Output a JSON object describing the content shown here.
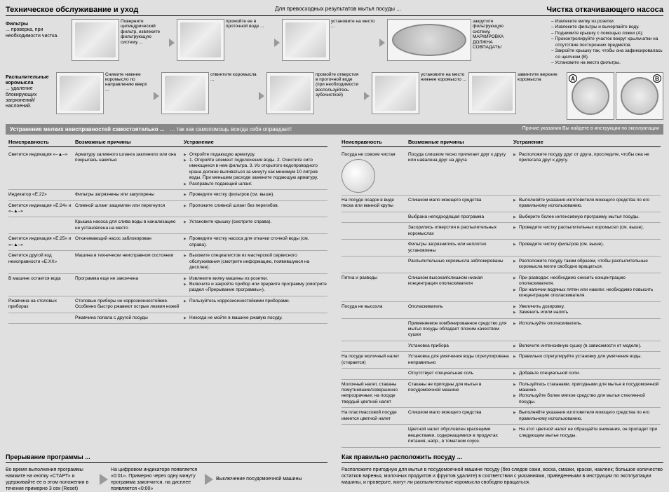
{
  "header": {
    "left": "Техническое обслуживание и уход",
    "mid": "Для превосходных результатов мытья посуды ...",
    "right": "Чистка откачивающего насоса"
  },
  "filters": {
    "label_b": "Фильтры",
    "label_rest": "... проверка, при необходимости чистка.",
    "steps": [
      "Поверните цилиндрический фильтр, извлеките фильтрующую систему ...",
      "промойте ее в проточной воде ...",
      "установите на место ...",
      "закрутите фильтрующую систему. МАРКИРОВКА ДОЛЖНА СОВПАДАТЬ!"
    ]
  },
  "pump_notes": [
    "– Извлеките вилку из розетки.",
    "– Извлеките фильтры и вычерпайте воду.",
    "– Поднимите крышку с помощью ложки (A).",
    "– Проконтролируйте участок вокруг крыльчатки на отсутствие посторонних предметов.",
    "– Закройте крышку так, чтобы она зафиксировалась со щелчком (B).",
    "– Установите на место фильтры."
  ],
  "arms": {
    "label_b": "Распылительные коромысла",
    "label_rest": "... удаление блокирующих загрязнений/ наслоений.",
    "steps": [
      "Снимите нижнее коромысло по направлению вверх ...",
      "отвинтите коромысла ...",
      "промойте отверстия в проточной воде (при необходимости воспользуйтесь зубочисткой)",
      "установите на место нижнее коромысло ...",
      "завинтите верхние коромысла"
    ]
  },
  "darkbar": {
    "l": "Устранение мелких неисправностей самостоятельно ...",
    "m": "... так как самопомощь всегда себя оправдает!",
    "r": "Прочие указания Вы найдете в инструкции по эксплуатации"
  },
  "thead": {
    "c1": "Неисправность",
    "c2": "Возможные причины",
    "c3": "Устранение"
  },
  "left_rows": [
    {
      "c1": "Светится индикация «–▲–»",
      "c2": "Арматуру заливного шланга заклинило или она покрылась накипью",
      "c3": [
        "Откройте подающую арматуру.",
        "1. Откройте элемент подключения воды. 2. Очистите сито имеющееся в нем фильтра. 3. Из открытого водопроводного крана должно выливаться за минуту как минимум 10 литров воды. При меньшем расходе замените подающую арматуру.",
        "Расправьте подающий шланг."
      ]
    },
    {
      "c1": "Индикатор «E:22»",
      "c2": "Фильтры загрязнены или закупорены",
      "c3": [
        "Проведите чистку фильтров (см. выше)."
      ]
    },
    {
      "c1": "Светится индикация «E:24» и «–▲–»",
      "c2": "Сливной шланг защемлен или перегнулся",
      "c3": [
        "Проложите сливной шланг без перегибов."
      ]
    },
    {
      "c1": "",
      "c2": "Крышка насоса для слива воды в канализацию не установлена на место",
      "c3": [
        "Установите крышку (смотрите справа)."
      ]
    },
    {
      "c1": "Светится индикация «E:25» и «–▲–»",
      "c2": "Откачивающий насос заблокирован",
      "c3": [
        "Проведите чистку насоса для откачки сточной воды (см. справа)."
      ]
    },
    {
      "c1": "Светится другой код неисправности «E:XX»",
      "c2": "Машина в технически неисправном состоянии",
      "c3": [
        "Вызовите специалистов из мастерской сервисного обслуживания (смотрите информацию, появившуюся на дисплее)."
      ]
    },
    {
      "c1": "В машине остается вода",
      "c2": "Программа еще не закончена",
      "c3": [
        "Извлеките вилку машины из розетки.",
        "Включите и закройте прибор или прервите программу (смотрите раздел «Прерывание программы»)."
      ]
    },
    {
      "c1": "Ржавчина на столовых приборах",
      "c2": "Столовые приборы не коррозионностойкие. Особенно быстро ржавеют острые лезвия ножей",
      "c3": [
        "Пользуйтесь коррозионностойкими приборами."
      ]
    },
    {
      "c1": "",
      "c2": "Ржавчина попала с другой посуды",
      "c3": [
        "Никогда не мойте в машине ржавую посуду."
      ]
    }
  ],
  "right_rows": [
    {
      "c1": "Посуда не совсем чистая",
      "c2": "Посуда слишком тесно прилегает друг к другу или навалена друг на друга",
      "c3": [
        "Расположите посуду друг от друга, проследите, чтобы она не прилегала друг к другу."
      ]
    },
    {
      "c1": "На посуде осадок в виде песка или манной крупы",
      "c2": "Слишком мало моющего средства",
      "c3": [
        "Выполняйте указания изготовителя моющего средства по его правильному использованию."
      ]
    },
    {
      "c1": "",
      "c2": "Выбрана неподходящая программа",
      "c3": [
        "Выберите более интенсивную программу мытья посуды."
      ]
    },
    {
      "c1": "",
      "c2": "Засорились отверстия в распылительных коромыслах",
      "c3": [
        "Проведите чистку распылительных коромысел (см. выше)."
      ]
    },
    {
      "c1": "",
      "c2": "Фильтры загрязнились или неплотно установлены",
      "c3": [
        "Проведите чистку фильтров (см. выше)."
      ]
    },
    {
      "c1": "",
      "c2": "Распылительные коромысла заблокированы",
      "c3": [
        "Расположите посуду таким образом, чтобы распылительные коромысла могли свободно вращаться."
      ]
    },
    {
      "c1": "Пятна и разводы",
      "c2": "Слишком высокая/слишком низкая концентрация ополаскивателя",
      "c3": [
        "При разводах: необходимо снизить концентрацию ополаскивателя.",
        "При наличии водяных пятен или накипи: необходимо повысить концентрацию ополаскивателя."
      ]
    },
    {
      "c1": "Посуда не высохла",
      "c2": "Ополаскиватель",
      "c3": [
        "Увеличить дозировку.",
        "Заменить и/или налить"
      ]
    },
    {
      "c1": "",
      "c2": "Применяемое комбинированное средство для мытья посуды обладает плохим качеством сушки",
      "c3": [
        "Используйте ополаскиватель."
      ]
    },
    {
      "c1": "",
      "c2": "Установка прибора",
      "c3": [
        "Включите интенсивную сушку (в зависимости от модели)."
      ]
    },
    {
      "c1": "На посуде молочный налет (стирается)",
      "c2": "Установка для умягчения воды отрегулирована неправильно",
      "c3": [
        "Правильно отрегулируйте установку для умягчения воды."
      ]
    },
    {
      "c1": "",
      "c2": "Отсутствует специальная соль",
      "c3": [
        "Добавьте специальной соли."
      ]
    },
    {
      "c1": "Молочный налет, стаканы помутневшие/совершенно непрозрачные; на посуде твердый цветной налет",
      "c2": "Стаканы не пригодны для мытья в посудомоечной машине",
      "c3": [
        "Пользуйтесь стаканами, пригодными для мытья в посудомоечной машине.",
        "Используйте более мягкое средство для мытья стеклянной посуды."
      ]
    },
    {
      "c1": "На пластмассовой посуде имеется цветной налет",
      "c2": "Слишком мало моющего средства",
      "c3": [
        "Выполняйте указания изготовителя моющего средства по его правильному использованию."
      ]
    },
    {
      "c1": "",
      "c2": "Цветной налет обусловлен красящими веществами, содержащимися в продуктах питания, напр., в томатном соусе.",
      "c3": [
        "На этот цветной налет не обращайте внимания, он пропадет при следующем мытье посуды."
      ]
    }
  ],
  "footer": {
    "interrupt_title": "Прерывание программы ...",
    "interrupt_steps": [
      "Во время выполнения программы нажмите на кнопку «СТАРТ» и удерживайте ее в этом положении в течение примерно 3 сек (Reset)",
      "На цифровом индикаторе появляется «0:01». Примерно через одну минуту программа закончится, на дисплее появляется «0:00»",
      "Выключение посудомоечной машины"
    ],
    "arrange_title": "Как правильно расположить посуду ...",
    "arrange_text": "Расположите пригодную для мытья в посудомоечной машине посуду (без следов сажи, воска, смазки, краски, наклеек; большое количество остатков варенья, молочных продуктов и фруктов удалите) в соответствии с указаниями, приведенными в инструкции по эксплуатации машины, и проверьте, могут ли распылительные коромысла свободно вращаться."
  }
}
